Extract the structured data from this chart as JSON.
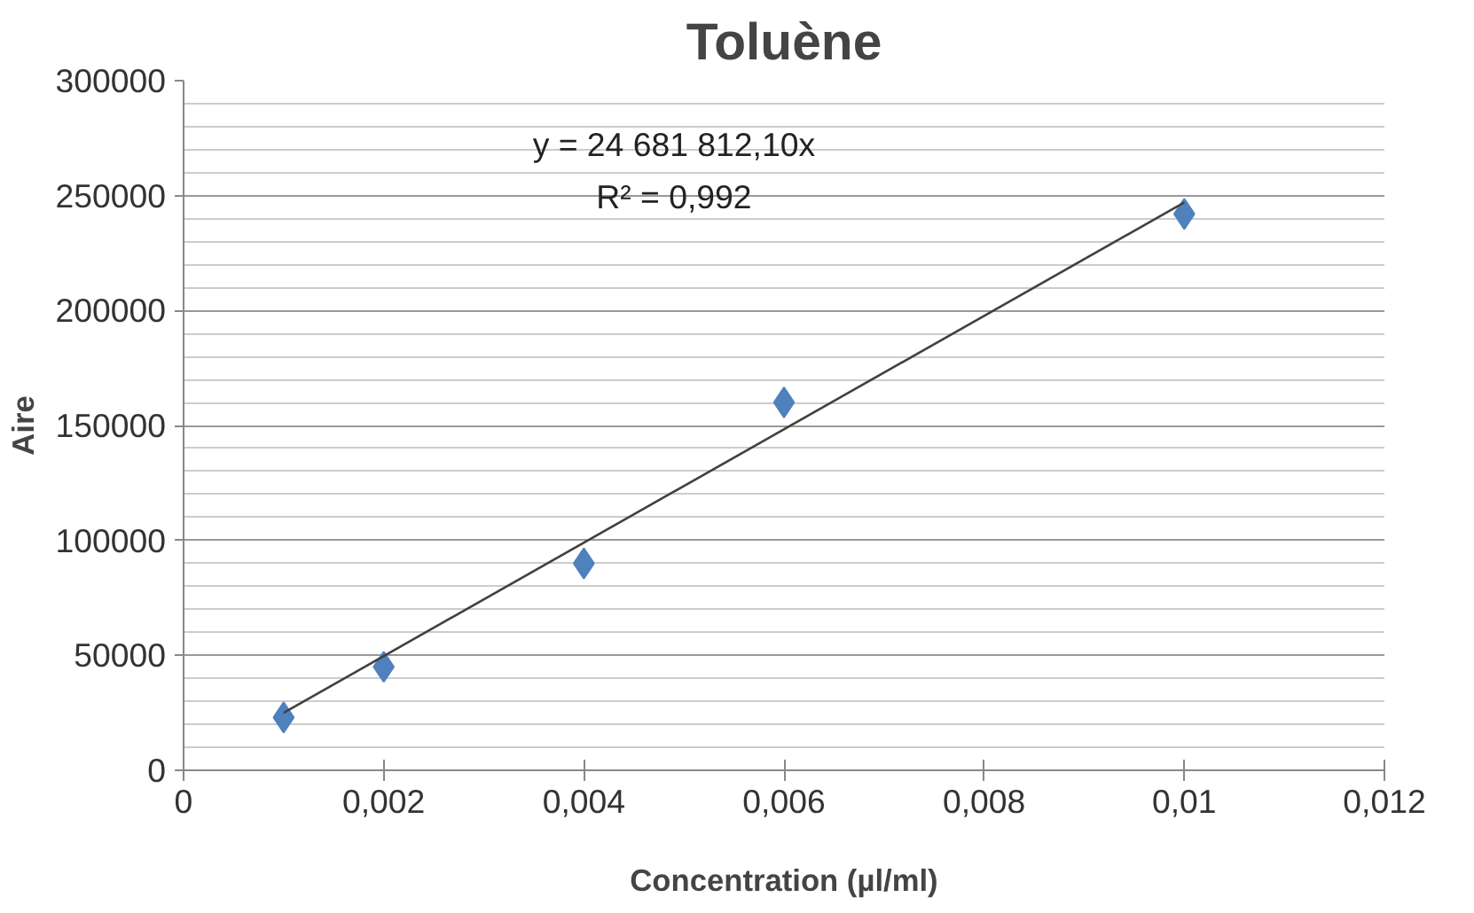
{
  "chart_data": {
    "type": "scatter",
    "title": "Toluène",
    "xlabel": "Concentration (µl/ml)",
    "ylabel": "Aire",
    "xlim": [
      0,
      0.012
    ],
    "xticks": [
      {
        "value": 0,
        "label": "0"
      },
      {
        "value": 0.002,
        "label": "0,002"
      },
      {
        "value": 0.004,
        "label": "0,004"
      },
      {
        "value": 0.006,
        "label": "0,006"
      },
      {
        "value": 0.008,
        "label": "0,008"
      },
      {
        "value": 0.01,
        "label": "0,01"
      },
      {
        "value": 0.012,
        "label": "0,012"
      }
    ],
    "ylim": [
      0,
      300000
    ],
    "yticks": [
      0,
      50000,
      100000,
      150000,
      200000,
      250000,
      300000
    ],
    "grid": "y",
    "series": [
      {
        "color": "#4f81bd",
        "marker": "diamond",
        "x": [
          0.001,
          0.002,
          0.004,
          0.006,
          0.01
        ],
        "values": [
          23000,
          45000,
          90000,
          160000,
          242000
        ]
      },
      {
        "type": "line",
        "color": "#404040",
        "line_style": "solid",
        "x": [
          0.001,
          0.01
        ],
        "values": [
          25000,
          247000
        ]
      }
    ],
    "annotations": [
      "y = 24 681 812,10x",
      "R² = 0,992"
    ]
  }
}
